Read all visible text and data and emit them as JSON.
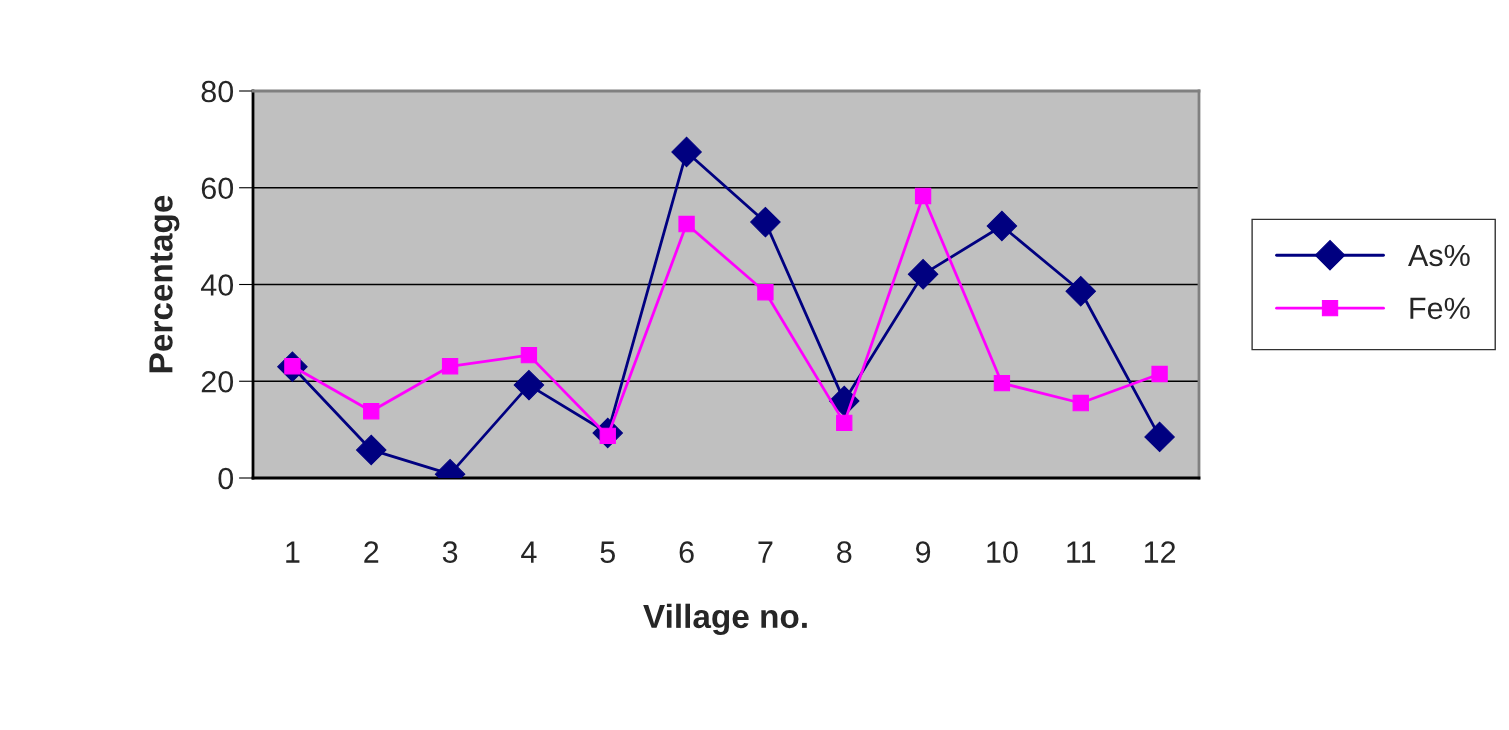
{
  "chart_data": {
    "type": "line",
    "xlabel": "Village no.",
    "ylabel": "Percentage",
    "categories": [
      "1",
      "2",
      "3",
      "4",
      "5",
      "6",
      "7",
      "8",
      "9",
      "10",
      "11",
      "12"
    ],
    "series": [
      {
        "name": "As%",
        "color": "#000080",
        "marker": "diamond",
        "values": [
          23,
          5.8,
          0.8,
          19.2,
          9.3,
          67.4,
          52.9,
          15.9,
          42.1,
          52.1,
          38.6,
          8.5
        ]
      },
      {
        "name": "Fe%",
        "color": "#ff00ff",
        "marker": "square",
        "values": [
          23.1,
          13.8,
          23.1,
          25.4,
          8.7,
          52.5,
          38.4,
          11.4,
          58.3,
          19.6,
          15.5,
          21.5
        ]
      }
    ],
    "ylim": [
      0,
      80
    ],
    "yticks": [
      0,
      20,
      40,
      60,
      80
    ],
    "grid": "y",
    "legend": "right",
    "line_style": "solid"
  }
}
